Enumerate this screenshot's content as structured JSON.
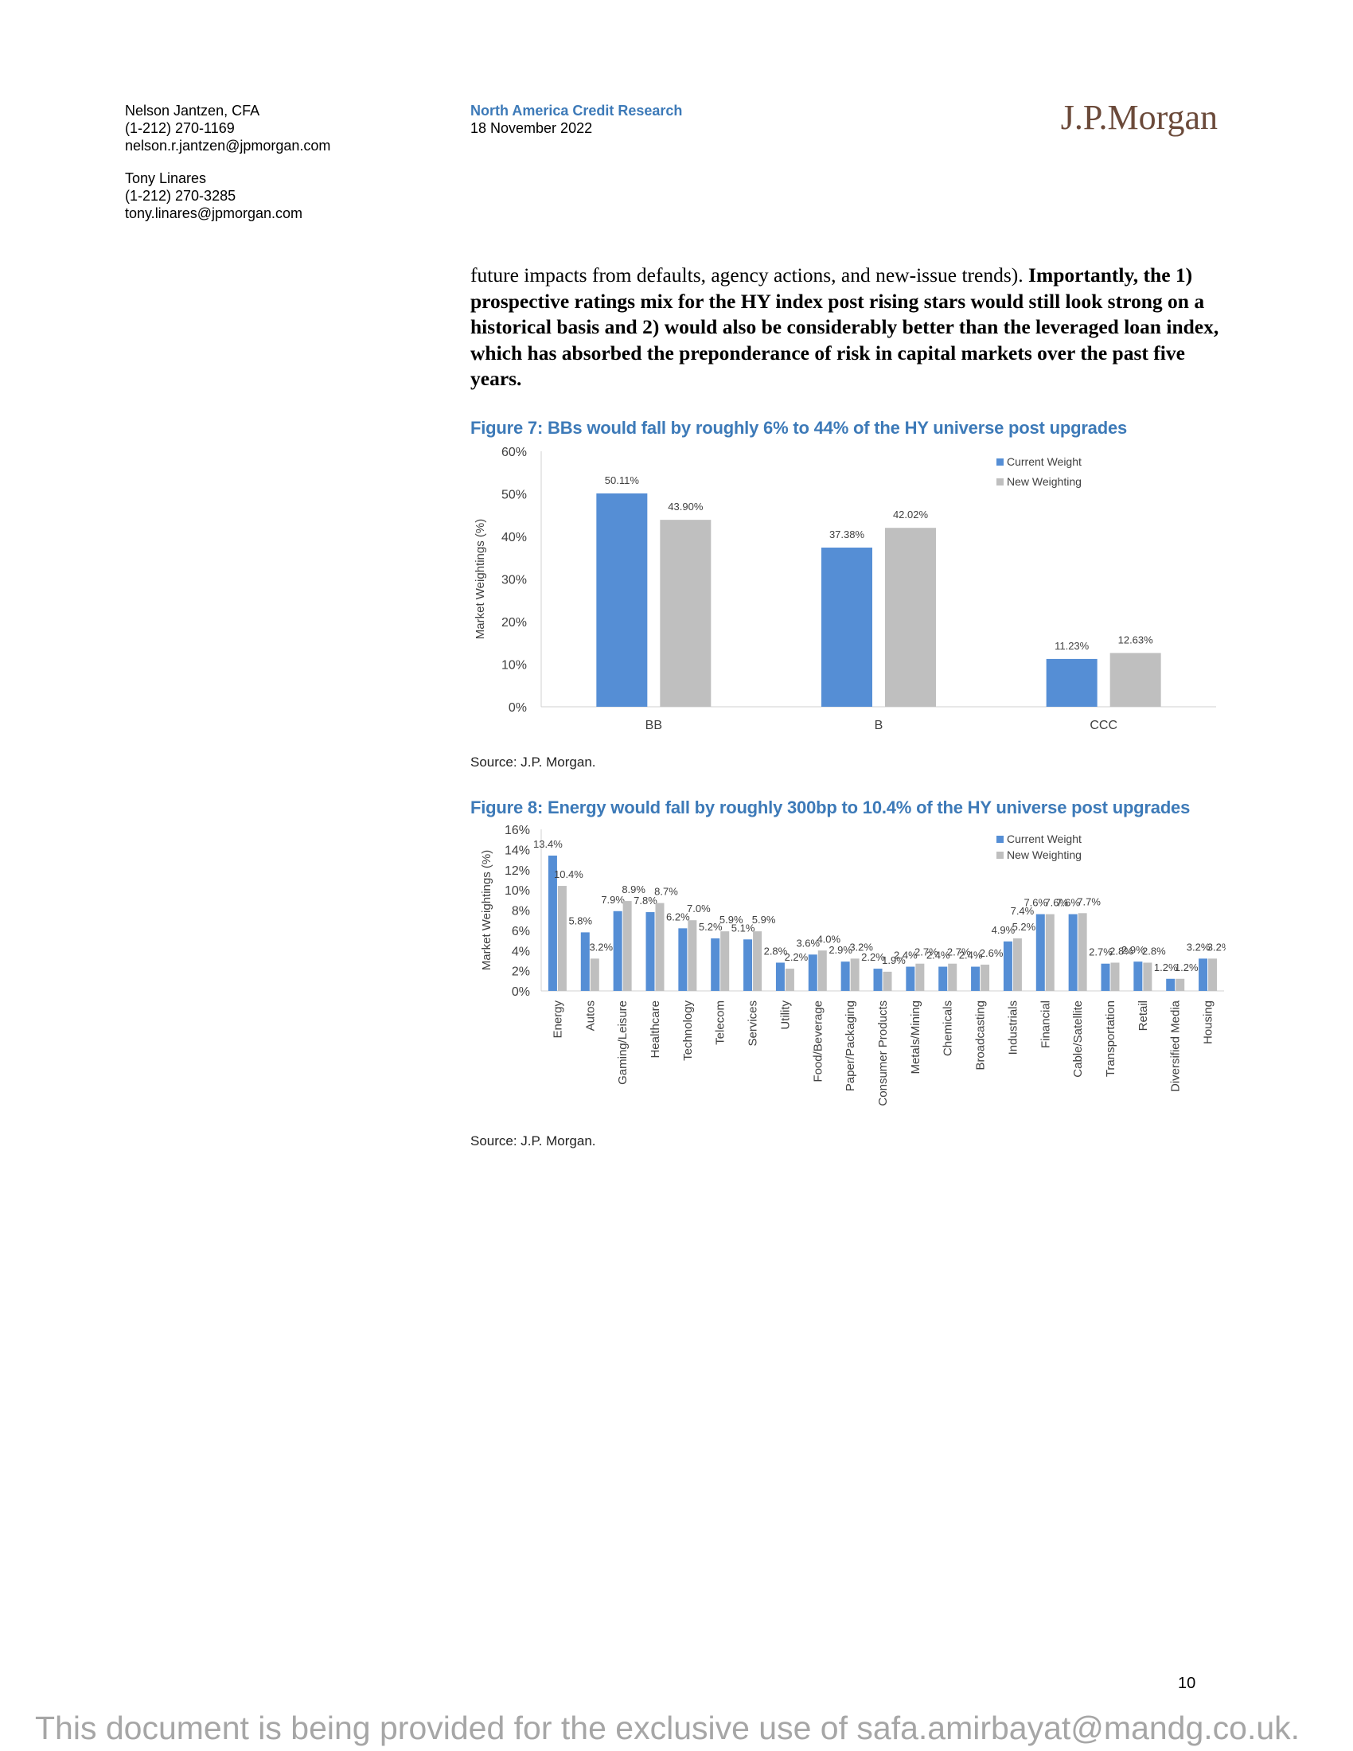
{
  "header": {
    "authors": [
      {
        "name": "Nelson Jantzen, CFA",
        "phone": "(1-212) 270-1169",
        "email": "nelson.r.jantzen@jpmorgan.com"
      },
      {
        "name": "Tony Linares",
        "phone": "(1-212) 270-3285",
        "email": "tony.linares@jpmorgan.com"
      }
    ],
    "series": "North America Credit Research",
    "date": "18 November 2022",
    "logo": "J.P.Morgan"
  },
  "body": {
    "normal_text": "future impacts from defaults, agency actions, and new-issue trends). ",
    "bold_text": "Importantly, the 1) prospective ratings mix for the HY index post rising stars would still look strong on a historical basis and 2) would also be considerably better than the leveraged loan index, which has absorbed the preponderance of risk in capital markets over the past five years."
  },
  "figure7": {
    "title": "Figure 7: BBs would fall by roughly 6% to 44% of the HY universe post upgrades",
    "source": "Source: J.P. Morgan."
  },
  "figure8": {
    "title": "Figure 8: Energy would fall by roughly 300bp to 10.4% of the HY universe post upgrades",
    "source": "Source: J.P. Morgan."
  },
  "chart_data": [
    {
      "type": "bar",
      "title": "Figure 7: BBs would fall by roughly 6% to 44% of the HY universe post upgrades",
      "ylabel": "Market Weightings (%)",
      "ylim": [
        0,
        60
      ],
      "yticks": [
        "0%",
        "10%",
        "20%",
        "30%",
        "40%",
        "50%",
        "60%"
      ],
      "categories": [
        "BB",
        "B",
        "CCC"
      ],
      "legend_position": "top-right",
      "series": [
        {
          "name": "Current Weight",
          "color": "#558ed5",
          "values": [
            50.11,
            37.38,
            11.23
          ],
          "labels": [
            "50.11%",
            "37.38%",
            "11.23%"
          ]
        },
        {
          "name": "New Weighting",
          "color": "#bfbfbf",
          "values": [
            43.9,
            42.02,
            12.63
          ],
          "labels": [
            "43.90%",
            "42.02%",
            "12.63%"
          ]
        }
      ]
    },
    {
      "type": "bar",
      "title": "Figure 8: Energy would fall by roughly 300bp to 10.4% of the HY universe post upgrades",
      "ylabel": "Market Weightings (%)",
      "ylim": [
        0,
        16
      ],
      "yticks": [
        "0%",
        "2%",
        "4%",
        "6%",
        "8%",
        "10%",
        "12%",
        "14%",
        "16%"
      ],
      "categories": [
        "Energy",
        "Autos",
        "Gaming/Leisure",
        "Healthcare",
        "Technology",
        "Telecom",
        "Services",
        "Utility",
        "Food/Beverage",
        "Paper/Packaging",
        "Consumer Products",
        "Metals/Mining",
        "Chemicals",
        "Broadcasting",
        "Industrials",
        "Financial",
        "Cable/Satellite",
        "Transportation",
        "Retail",
        "Diversified Media",
        "Housing"
      ],
      "legend_position": "top-right",
      "series": [
        {
          "name": "Current Weight",
          "color": "#558ed5",
          "values": [
            13.4,
            5.8,
            7.9,
            7.8,
            6.2,
            5.2,
            5.1,
            2.8,
            3.6,
            2.9,
            2.2,
            2.4,
            2.4,
            2.4,
            4.9,
            7.6,
            7.6,
            2.7,
            2.9,
            1.2,
            3.2
          ],
          "labels": [
            "13.4%",
            "5.8%",
            "7.9%",
            "7.8%",
            "6.2%",
            "5.2%",
            "5.1%",
            "2.8%",
            "3.6%",
            "2.9%",
            "2.2%",
            "2.4%",
            "2.4%",
            "2.4%",
            "4.9%",
            "7.6%",
            "7.6%",
            "2.7%",
            "2.9%",
            "1.2%",
            "3.2%"
          ]
        },
        {
          "name": "New Weighting",
          "color": "#bfbfbf",
          "values": [
            10.4,
            3.2,
            8.9,
            8.7,
            7.0,
            5.9,
            5.9,
            2.2,
            4.0,
            3.2,
            1.9,
            2.7,
            2.7,
            2.6,
            5.2,
            7.6,
            7.7,
            2.8,
            2.8,
            1.2,
            3.2
          ],
          "labels": [
            "10.4%",
            "3.2%",
            "8.9%",
            "8.7%",
            "7.0%",
            "5.9%",
            "5.9%",
            "2.2%",
            "4.0%",
            "3.2%",
            "1.9%",
            "2.7%",
            "2.7%",
            "2.6%",
            "5.2%",
            "7.6%",
            "7.7%",
            "2.8%",
            "2.8%",
            "1.2%",
            "3.2%"
          ]
        }
      ],
      "annotation_labels": [
        "7.4%"
      ]
    }
  ],
  "footer": {
    "page_number": "10",
    "watermark": "This document is being provided for the exclusive use of safa.amirbayat@mandg.co.uk."
  }
}
